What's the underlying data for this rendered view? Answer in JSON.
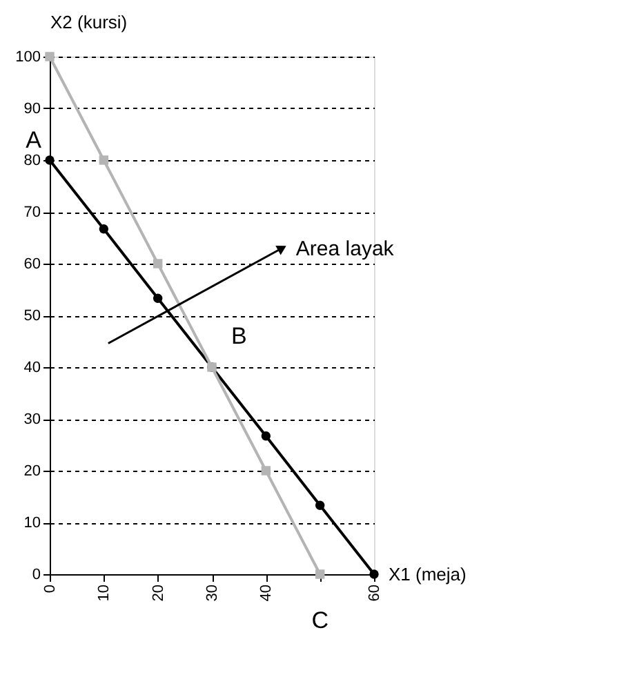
{
  "chart_data": {
    "type": "line",
    "xlabel": "X1 (meja)",
    "ylabel": "X2 (kursi)",
    "xlim": [
      0,
      60
    ],
    "xticks": [
      0,
      10,
      20,
      30,
      40,
      {
        "value": 50,
        "label": null
      },
      60
    ],
    "ylim": [
      0,
      100
    ],
    "yticks": [
      0,
      10,
      20,
      30,
      40,
      50,
      60,
      70,
      80,
      90,
      100
    ],
    "grid": "y",
    "line_style": "solid",
    "series": [
      {
        "color": "#000000",
        "marker": "circle",
        "x": [
          0,
          10,
          20,
          30,
          40,
          50,
          60
        ],
        "values": [
          80,
          66.7,
          53.3,
          40,
          26.7,
          13.3,
          0
        ]
      },
      {
        "color": "#b4b4b4",
        "marker": "square",
        "x": [
          0,
          10,
          20,
          30,
          40,
          50
        ],
        "values": [
          100,
          80,
          60,
          40,
          20,
          0
        ]
      }
    ],
    "annotations": [
      {
        "text": "A",
        "x": 0,
        "y": 80
      },
      {
        "text": "B",
        "x": 30,
        "y": 40
      },
      {
        "text": "C",
        "x": 50,
        "y": 0
      },
      {
        "text": "Area layak",
        "x": 43,
        "y": 63
      }
    ]
  }
}
